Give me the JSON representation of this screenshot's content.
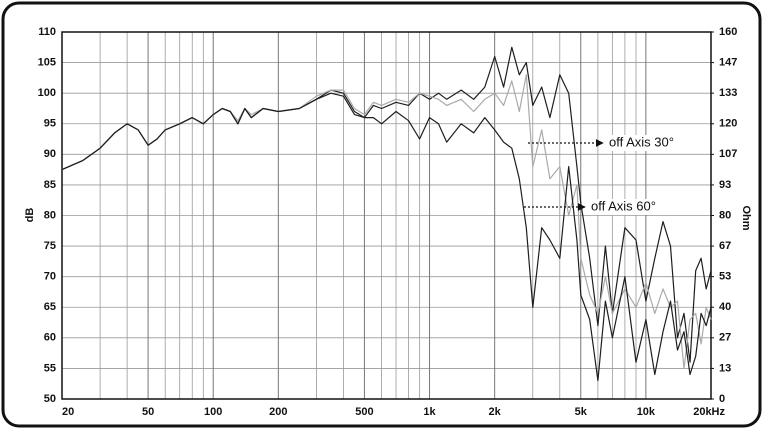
{
  "chart_data": {
    "type": "line",
    "xlabel": "dB",
    "y2label": "Ohm",
    "xscale": "log",
    "xlim": [
      20,
      20000
    ],
    "xticks": [
      20,
      50,
      100,
      200,
      500,
      {
        "value": 1000,
        "label": "1k"
      },
      {
        "value": 2000,
        "label": "2k"
      },
      {
        "value": 5000,
        "label": "5k"
      },
      {
        "value": 10000,
        "label": "10k"
      },
      {
        "value": 20000,
        "label": "20kHz"
      }
    ],
    "xminorticks": [
      30,
      40,
      60,
      70,
      80,
      90,
      300,
      400,
      600,
      700,
      800,
      900,
      3000,
      4000,
      6000,
      7000,
      8000,
      9000
    ],
    "ylim": [
      50,
      110
    ],
    "yticks": [
      50,
      55,
      60,
      65,
      70,
      75,
      80,
      85,
      90,
      95,
      100,
      105,
      110
    ],
    "y2lim": [
      0,
      160
    ],
    "y2ticks": [
      0,
      {
        "value": 13.333,
        "label": "13"
      },
      {
        "value": 26.667,
        "label": "27"
      },
      40,
      {
        "value": 53.333,
        "label": "53"
      },
      {
        "value": 66.667,
        "label": "67"
      },
      80,
      {
        "value": 93.333,
        "label": "93"
      },
      {
        "value": 106.667,
        "label": "107"
      },
      120,
      {
        "value": 133.333,
        "label": "133"
      },
      {
        "value": 146.667,
        "label": "147"
      },
      160
    ],
    "grid": true,
    "x": [
      20,
      25,
      30,
      35,
      40,
      45,
      50,
      55,
      60,
      70,
      80,
      90,
      100,
      110,
      120,
      130,
      140,
      150,
      170,
      200,
      250,
      300,
      350,
      400,
      450,
      500,
      550,
      600,
      700,
      800,
      900,
      1000,
      1100,
      1200,
      1400,
      1600,
      1800,
      2000,
      2200,
      2400,
      2600,
      2800,
      3000,
      3300,
      3600,
      4000,
      4400,
      4800,
      5000,
      5500,
      6000,
      6500,
      7000,
      8000,
      9000,
      10000,
      11000,
      12000,
      13000,
      14000,
      15000,
      16000,
      17000,
      18000,
      19000,
      20000
    ],
    "series": [
      {
        "color": "#1e1e1e",
        "values": [
          87.5,
          89,
          91,
          93.5,
          95,
          94,
          91.5,
          92.5,
          94,
          95,
          96,
          95,
          96.5,
          97.5,
          97,
          95,
          97.5,
          96,
          97.5,
          97,
          97.5,
          99,
          100.5,
          100,
          97,
          96,
          98,
          97.5,
          98.5,
          98,
          100,
          99,
          100,
          99,
          100.5,
          99,
          101,
          106,
          101,
          107.5,
          103,
          105,
          98,
          101,
          96,
          103,
          100,
          88,
          82,
          73,
          62,
          75,
          64,
          78,
          76,
          66,
          73,
          79,
          75,
          60,
          64,
          56,
          71,
          73,
          68,
          71
        ]
      },
      {
        "name": "off Axis 30°",
        "color": "#aaaaaa",
        "values": [
          87.5,
          89,
          91,
          93.5,
          95,
          94,
          91.5,
          92.5,
          94,
          95,
          96,
          95,
          96.5,
          97.5,
          97,
          95.5,
          97.5,
          96.5,
          97.5,
          97,
          97.5,
          99.5,
          100.5,
          100.5,
          97.5,
          96.5,
          98.5,
          98,
          99,
          98.5,
          100,
          99.5,
          99,
          98,
          99,
          97,
          99,
          100,
          98,
          102,
          97,
          103,
          88,
          94,
          86,
          88,
          80,
          85,
          73,
          67,
          64,
          70,
          64,
          68,
          65,
          69,
          64,
          68,
          65,
          66,
          55,
          63,
          64,
          59,
          65,
          63
        ]
      },
      {
        "name": "off Axis 60°",
        "color": "#1e1e1e",
        "values": [
          87.5,
          89,
          91,
          93.5,
          95,
          94,
          91.5,
          92.5,
          94,
          95,
          96,
          95,
          96.5,
          97.5,
          97,
          95,
          97.5,
          96,
          97.5,
          97,
          97.5,
          99,
          100,
          99.5,
          96.5,
          96,
          96,
          95,
          97,
          95.5,
          92.5,
          96,
          95,
          92,
          95,
          93.5,
          96,
          94,
          92,
          91,
          86,
          78,
          65,
          78,
          76,
          73,
          88,
          76,
          67,
          63,
          53,
          66,
          60,
          70,
          56,
          63,
          54,
          61,
          66,
          58,
          61,
          54,
          57,
          64,
          62,
          65
        ]
      }
    ]
  }
}
